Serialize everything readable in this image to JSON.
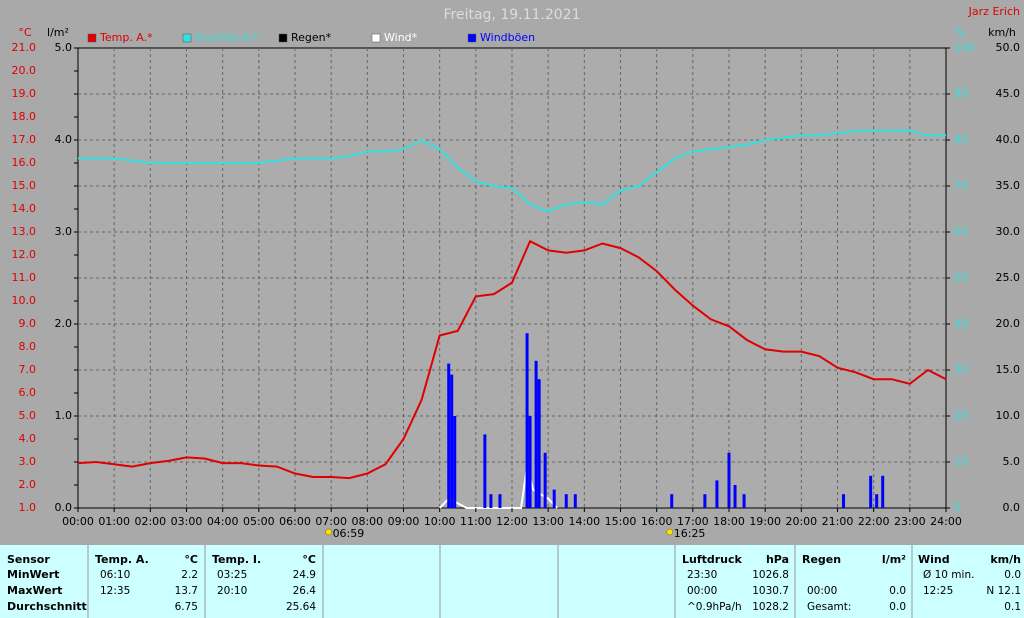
{
  "chart_data": {
    "type": "line",
    "title": "Freitag, 19.11.2021",
    "author": "Jarz Erich",
    "xlim": [
      0,
      24
    ],
    "xticks": [
      {
        "value": 0,
        "label": "00:00"
      },
      {
        "value": 1,
        "label": "01:00"
      },
      {
        "value": 2,
        "label": "02:00"
      },
      {
        "value": 3,
        "label": "03:00"
      },
      {
        "value": 4,
        "label": "04:00"
      },
      {
        "value": 5,
        "label": "05:00"
      },
      {
        "value": 6,
        "label": "06:00"
      },
      {
        "value": 7,
        "label": "07:00"
      },
      {
        "value": 8,
        "label": "08:00"
      },
      {
        "value": 9,
        "label": "09:00"
      },
      {
        "value": 10,
        "label": "10:00"
      },
      {
        "value": 11,
        "label": "11:00"
      },
      {
        "value": 12,
        "label": "12:00"
      },
      {
        "value": 13,
        "label": "13:00"
      },
      {
        "value": 14,
        "label": "14:00"
      },
      {
        "value": 15,
        "label": "15:00"
      },
      {
        "value": 16,
        "label": "16:00"
      },
      {
        "value": 17,
        "label": "17:00"
      },
      {
        "value": 18,
        "label": "18:00"
      },
      {
        "value": 19,
        "label": "19:00"
      },
      {
        "value": 20,
        "label": "20:00"
      },
      {
        "value": 21,
        "label": "21:00"
      },
      {
        "value": 22,
        "label": "22:00"
      },
      {
        "value": 23,
        "label": "23:00"
      },
      {
        "value": 24,
        "label": "24:00"
      }
    ],
    "ylabel": "°C",
    "ylim": [
      1,
      21
    ],
    "yticks": [
      {
        "value": 1,
        "label": "1.0"
      },
      {
        "value": 2,
        "label": "2.0"
      },
      {
        "value": 3,
        "label": "3.0"
      },
      {
        "value": 4,
        "label": "4.0"
      },
      {
        "value": 5,
        "label": "5.0"
      },
      {
        "value": 6,
        "label": "6.0"
      },
      {
        "value": 7,
        "label": "7.0"
      },
      {
        "value": 8,
        "label": "8.0"
      },
      {
        "value": 9,
        "label": "9.0"
      },
      {
        "value": 10,
        "label": "10.0"
      },
      {
        "value": 11,
        "label": "11.0"
      },
      {
        "value": 12,
        "label": "12.0"
      },
      {
        "value": 13,
        "label": "13.0"
      },
      {
        "value": 14,
        "label": "14.0"
      },
      {
        "value": 15,
        "label": "15.0"
      },
      {
        "value": 16,
        "label": "16.0"
      },
      {
        "value": 17,
        "label": "17.0"
      },
      {
        "value": 18,
        "label": "18.0"
      },
      {
        "value": 19,
        "label": "19.0"
      },
      {
        "value": 20,
        "label": "20.0"
      },
      {
        "value": 21,
        "label": "21.0"
      }
    ],
    "y2label": "l/m²",
    "y2lim": [
      0,
      5
    ],
    "y2ticks": [
      {
        "value": 0,
        "label": "0.0"
      },
      {
        "value": 1,
        "label": "1.0"
      },
      {
        "value": 2,
        "label": "2.0"
      },
      {
        "value": 3,
        "label": "3.0"
      },
      {
        "value": 4,
        "label": "4.0"
      },
      {
        "value": 5,
        "label": "5.0"
      }
    ],
    "y3label": "%",
    "y3lim": [
      0,
      100
    ],
    "y3ticks": [
      0,
      10,
      20,
      30,
      40,
      50,
      60,
      70,
      80,
      90,
      100
    ],
    "y4label": "km/h",
    "y4lim": [
      0,
      50
    ],
    "y4ticks": [
      {
        "value": 0,
        "label": "0.0"
      },
      {
        "value": 5,
        "label": "5.0"
      },
      {
        "value": 10,
        "label": "10.0"
      },
      {
        "value": 15,
        "label": "15.0"
      },
      {
        "value": 20,
        "label": "20.0"
      },
      {
        "value": 25,
        "label": "25.0"
      },
      {
        "value": 30,
        "label": "30.0"
      },
      {
        "value": 35,
        "label": "35.0"
      },
      {
        "value": 40,
        "label": "40.0"
      },
      {
        "value": 45,
        "label": "45.0"
      },
      {
        "value": 50,
        "label": "50.0"
      }
    ],
    "grid": true,
    "sunrise": "06:59",
    "sunset": "16:25",
    "x": [
      "00:00",
      "00:30",
      "01:00",
      "01:30",
      "02:00",
      "02:30",
      "03:00",
      "03:30",
      "04:00",
      "04:30",
      "05:00",
      "05:30",
      "06:00",
      "06:30",
      "07:00",
      "07:30",
      "08:00",
      "08:30",
      "09:00",
      "09:30",
      "10:00",
      "10:30",
      "11:00",
      "11:30",
      "12:00",
      "12:30",
      "13:00",
      "13:30",
      "14:00",
      "14:30",
      "15:00",
      "15:30",
      "16:00",
      "16:30",
      "17:00",
      "17:30",
      "18:00",
      "18:30",
      "19:00",
      "19:30",
      "20:00",
      "20:30",
      "21:00",
      "21:30",
      "22:00",
      "22:30",
      "23:00",
      "23:30",
      "24:00"
    ],
    "series": [
      {
        "name": "Temp. A.*",
        "color": "#e00000",
        "axis": "y",
        "style": "line",
        "values": [
          2.95,
          3.0,
          2.9,
          2.8,
          2.95,
          3.05,
          3.2,
          3.15,
          2.95,
          2.95,
          2.85,
          2.8,
          2.5,
          2.35,
          2.35,
          2.3,
          2.5,
          2.9,
          4.0,
          5.7,
          8.5,
          8.7,
          10.2,
          10.3,
          10.8,
          12.6,
          12.2,
          12.1,
          12.2,
          12.5,
          12.3,
          11.9,
          11.3,
          10.5,
          9.8,
          9.2,
          8.9,
          8.3,
          7.9,
          7.8,
          7.8,
          7.6,
          7.1,
          6.9,
          6.6,
          6.6,
          6.4,
          7.0,
          6.6
        ]
      },
      {
        "name": "Feuchte A.*",
        "color": "#33e0e0",
        "axis": "y3",
        "style": "line",
        "values": [
          76,
          76,
          76,
          75.5,
          75,
          75,
          75,
          75,
          75,
          75,
          75,
          75.5,
          76,
          76,
          76,
          76.5,
          77.5,
          77.5,
          78,
          80,
          78,
          74,
          71,
          70,
          69.5,
          66,
          64.5,
          66,
          66.5,
          66,
          69,
          70,
          73,
          76,
          77.5,
          78,
          78.5,
          79,
          80,
          80.5,
          81,
          81,
          81.5,
          82,
          82,
          82,
          82,
          81,
          81
        ]
      },
      {
        "name": "Regen*",
        "color": "#000000",
        "axis": "y2",
        "style": "line",
        "x": [],
        "values": []
      },
      {
        "name": "Wind*",
        "color": "#ffffff",
        "axis": "y4",
        "style": "line",
        "x": [
          "10:00",
          "10:15",
          "10:30",
          "10:45",
          "12:15",
          "12:25",
          "12:35",
          "13:00",
          "13:15"
        ],
        "values": [
          0,
          1,
          0.5,
          0,
          0,
          4.5,
          2,
          1,
          0
        ]
      },
      {
        "name": "Windböen",
        "color": "#0000ff",
        "axis": "y4",
        "style": "bar",
        "x": [
          "10:15",
          "10:20",
          "10:25",
          "11:15",
          "11:25",
          "11:40",
          "12:25",
          "12:30",
          "12:40",
          "12:45",
          "12:55",
          "13:10",
          "13:30",
          "13:45",
          "16:25",
          "17:20",
          "17:40",
          "18:00",
          "18:10",
          "18:25",
          "21:10",
          "21:55",
          "22:05",
          "22:15"
        ],
        "values": [
          15.7,
          14.5,
          10,
          8,
          1.5,
          1.5,
          19,
          10,
          16,
          14,
          6,
          2,
          1.5,
          1.5,
          1.5,
          1.5,
          3,
          6,
          2.5,
          1.5,
          1.5,
          3.5,
          1.5,
          3.5
        ]
      }
    ]
  },
  "table": {
    "sensor": "Sensor",
    "columns": [
      {
        "title": "Temp. A.",
        "unit": "°C"
      },
      {
        "title": "Temp. I.",
        "unit": "°C"
      },
      {
        "title": "Luftdruck",
        "unit": "hPa"
      },
      {
        "title": "Regen",
        "unit": "l/m²"
      },
      {
        "title": "Wind",
        "unit": "km/h"
      }
    ],
    "rows": [
      {
        "label": "MinWert",
        "cells": [
          [
            "06:10",
            "2.2"
          ],
          [
            "03:25",
            "24.9"
          ],
          [
            "23:30",
            "1026.8"
          ],
          null,
          [
            "Ø 10 min.",
            "0.0"
          ]
        ]
      },
      {
        "label": "MaxWert",
        "cells": [
          [
            "12:35",
            "13.7"
          ],
          [
            "20:10",
            "26.4"
          ],
          [
            "00:00",
            "1030.7"
          ],
          [
            "00:00",
            "0.0"
          ],
          [
            "12:25",
            "N 12.1"
          ]
        ]
      },
      {
        "label": "Durchschnitt",
        "cells": [
          [
            null,
            "6.75"
          ],
          [
            null,
            "25.64"
          ],
          [
            "^0.9hPa/h",
            "1028.2"
          ],
          [
            "Gesamt:",
            "0.0"
          ],
          [
            null,
            "0.1"
          ]
        ]
      }
    ]
  }
}
